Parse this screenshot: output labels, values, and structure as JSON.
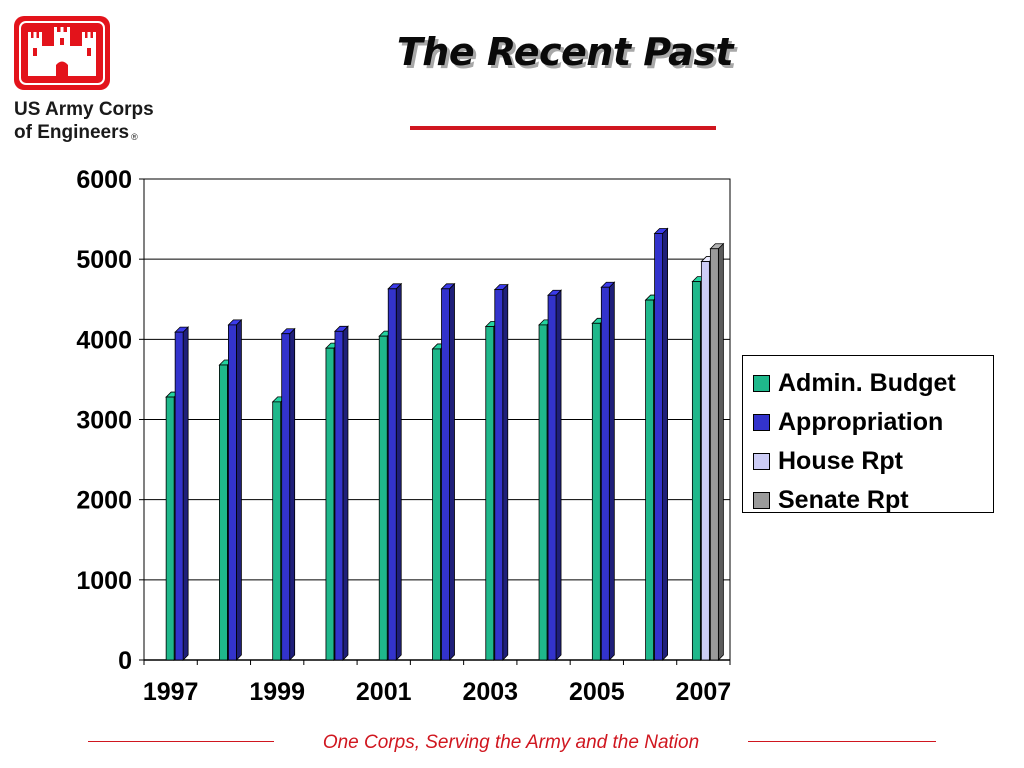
{
  "slide": {
    "title": "The Recent Past",
    "footer": "One Corps, Serving the Army and the Nation"
  },
  "logo": {
    "line1": "US Army Corps",
    "line2": "of Engineers",
    "mark": "®",
    "color": "#e3131b"
  },
  "colors": {
    "accent_red": "#d0161f"
  },
  "chart_data": {
    "type": "bar",
    "title": "",
    "xlabel": "",
    "ylabel": "",
    "categories": [
      "1997",
      "1998",
      "1999",
      "2000",
      "2001",
      "2002",
      "2003",
      "2004",
      "2005",
      "2006",
      "2007"
    ],
    "x_tick_labels": [
      "1997",
      "1999",
      "2001",
      "2003",
      "2005",
      "2007"
    ],
    "y_ticks": [
      "0",
      "1000",
      "2000",
      "3000",
      "4000",
      "5000",
      "6000"
    ],
    "ylim": [
      0,
      6000
    ],
    "grid": true,
    "legend_position": "right",
    "series": [
      {
        "name": "Admin. Budget",
        "color": "#1fb88b",
        "values": [
          3280,
          3680,
          3220,
          3890,
          4040,
          3880,
          4160,
          4180,
          4200,
          4490,
          4720
        ]
      },
      {
        "name": "Appropriation",
        "color": "#3333cc",
        "values": [
          4090,
          4180,
          4070,
          4100,
          4630,
          4630,
          4620,
          4550,
          4650,
          5320,
          null
        ]
      },
      {
        "name": "House Rpt",
        "color": "#ccccf5",
        "values": [
          null,
          null,
          null,
          null,
          null,
          null,
          null,
          null,
          null,
          null,
          4970
        ]
      },
      {
        "name": "Senate Rpt",
        "color": "#9a9a9a",
        "values": [
          null,
          null,
          null,
          null,
          null,
          null,
          null,
          null,
          null,
          null,
          5130
        ]
      }
    ]
  }
}
